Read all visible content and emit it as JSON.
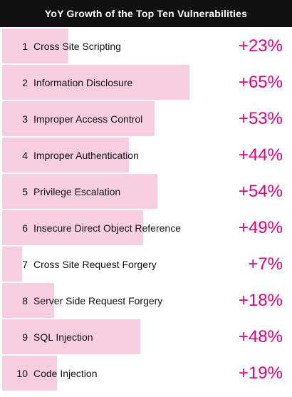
{
  "chart_data": {
    "type": "bar",
    "title": "YoY Growth of the Top Ten Vulnerabilities",
    "xlabel": "",
    "ylabel": "",
    "xlim": [
      0,
      100
    ],
    "grid": false,
    "bar_color": "#f7cde0",
    "value_color": "#e2007a",
    "header_bg": "#111111",
    "ranks": [
      "1",
      "2",
      "3",
      "4",
      "5",
      "6",
      "7",
      "8",
      "9",
      "10"
    ],
    "categories": [
      "Cross Site Scripting",
      "Information Disclosure",
      "Improper Access Control",
      "Improper Authentication",
      "Privilege Escalation",
      "Insecure Direct Object Reference",
      "Cross Site Request Forgery",
      "Server Side Request Forgery",
      "SQL Injection",
      "Code Injection"
    ],
    "values": [
      23,
      65,
      53,
      44,
      54,
      49,
      7,
      18,
      48,
      19
    ],
    "value_labels": [
      "+23%",
      "+65%",
      "+53%",
      "+44%",
      "+54%",
      "+49%",
      "+7%",
      "+18%",
      "+48%",
      "+19%"
    ]
  }
}
